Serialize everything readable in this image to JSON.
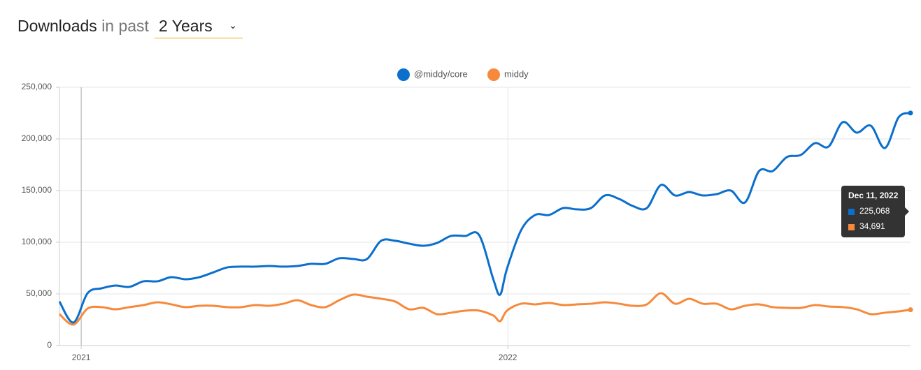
{
  "header": {
    "title": "Downloads",
    "subtitle": "in past",
    "range": "2 Years"
  },
  "chart_data": {
    "type": "line",
    "x": [
      2020.949,
      2020.982,
      2021.015,
      2021.048,
      2021.08,
      2021.113,
      2021.146,
      2021.179,
      2021.211,
      2021.244,
      2021.277,
      2021.31,
      2021.343,
      2021.375,
      2021.408,
      2021.441,
      2021.474,
      2021.507,
      2021.539,
      2021.572,
      2021.605,
      2021.638,
      2021.67,
      2021.703,
      2021.736,
      2021.769,
      2021.802,
      2021.834,
      2021.867,
      2021.9,
      2021.933,
      2021.966,
      2021.982,
      2021.998,
      2022.031,
      2022.064,
      2022.097,
      2022.13,
      2022.162,
      2022.195,
      2022.228,
      2022.261,
      2022.293,
      2022.326,
      2022.359,
      2022.392,
      2022.425,
      2022.457,
      2022.49,
      2022.523,
      2022.556,
      2022.589,
      2022.621,
      2022.654,
      2022.687,
      2022.72,
      2022.752,
      2022.785,
      2022.818,
      2022.851,
      2022.884,
      2022.916,
      2022.944
    ],
    "series": [
      {
        "name": "@middy/core",
        "color": "#0b6fcc",
        "values": [
          42600,
          22300,
          50700,
          55400,
          58100,
          56800,
          62200,
          62200,
          66200,
          64200,
          66200,
          70900,
          75700,
          76400,
          76400,
          77000,
          76400,
          77000,
          79100,
          79100,
          84500,
          83800,
          83800,
          101400,
          101400,
          98600,
          96600,
          99300,
          106100,
          106100,
          106800,
          64200,
          49300,
          74300,
          111500,
          126400,
          126400,
          133100,
          131800,
          133100,
          145300,
          141900,
          135100,
          133100,
          155400,
          145300,
          148600,
          145300,
          146600,
          150000,
          138500,
          168900,
          168900,
          182400,
          184500,
          195900,
          192600,
          216200,
          206100,
          212800,
          191200,
          220900,
          225068
        ]
      },
      {
        "name": "middy",
        "color": "#f6893b",
        "values": [
          30400,
          20300,
          35800,
          37200,
          35100,
          37200,
          39200,
          41900,
          39900,
          37200,
          38500,
          38500,
          37200,
          37200,
          39200,
          38500,
          40500,
          43900,
          39200,
          37200,
          43900,
          49300,
          47300,
          45300,
          42600,
          35100,
          36500,
          30400,
          31800,
          33800,
          33800,
          29100,
          23600,
          33800,
          40500,
          39900,
          41200,
          39200,
          39900,
          40500,
          41900,
          40500,
          38500,
          39900,
          50700,
          40500,
          45300,
          40500,
          40500,
          35100,
          38500,
          39900,
          37200,
          36500,
          36500,
          39200,
          37800,
          37200,
          35100,
          30400,
          31800,
          33100,
          34691
        ]
      }
    ],
    "xlim": [
      2020.949,
      2022.944
    ],
    "xticks": [
      2021,
      2022
    ],
    "ylim": [
      0,
      250000
    ],
    "yticks": [
      0,
      {
        "value": 50000,
        "label": "50,000"
      },
      {
        "value": 100000,
        "label": "100,000"
      },
      {
        "value": 150000,
        "label": "150,000"
      },
      {
        "value": 200000,
        "label": "200,000"
      },
      {
        "value": 250000,
        "label": "250,000"
      }
    ],
    "grid": true,
    "tooltip": {
      "title": "Dec 11, 2022",
      "labels": [
        "225,068",
        "34,691"
      ]
    }
  }
}
